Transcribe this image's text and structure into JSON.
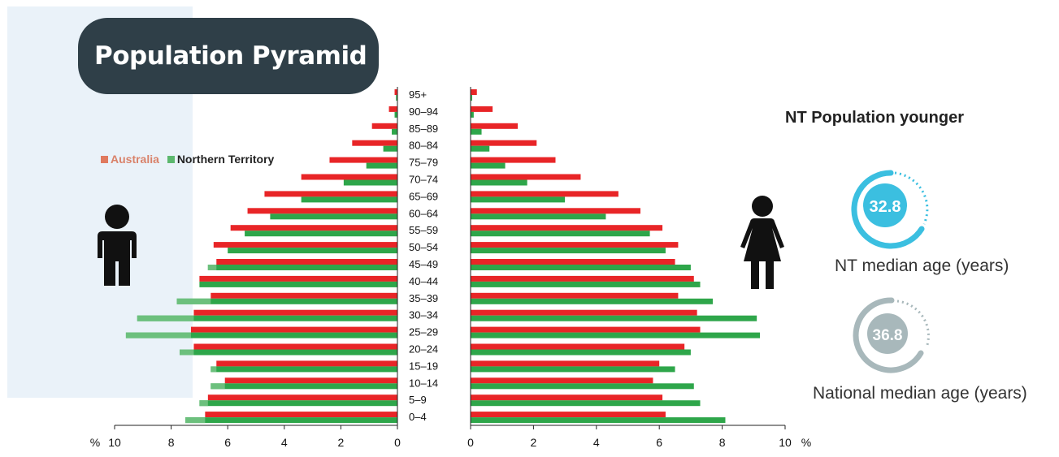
{
  "title": "Population Pyramid",
  "legend": {
    "australia": "Australia",
    "nt": "Northern Territory"
  },
  "side": {
    "heading": "NT Population younger",
    "nt_value": "32.8",
    "nt_label": "NT median age (years)",
    "national_value": "36.8",
    "national_label": "National median age (years)"
  },
  "colors": {
    "australia": "#e82527",
    "australia_legend": "#e07a5f",
    "nt": "#2ea64a",
    "nt_light": "#6cc07d",
    "nt_circle": "#3bbfe0",
    "national_circle": "#a8b8bb"
  },
  "icons": {
    "male": "male-figure-icon",
    "female": "female-figure-icon"
  },
  "chart_data": {
    "type": "bar",
    "title": "Population Pyramid",
    "axis_unit": "%",
    "xlim": [
      0,
      10
    ],
    "left_ticks": [
      "10",
      "8",
      "6",
      "4",
      "2",
      "0"
    ],
    "right_ticks": [
      "0",
      "2",
      "4",
      "6",
      "8",
      "10"
    ],
    "categories": [
      "95+",
      "90–94",
      "85–89",
      "80–84",
      "75–79",
      "70–74",
      "65–69",
      "60–64",
      "55–59",
      "50–54",
      "45–49",
      "40–44",
      "35–39",
      "30–34",
      "25–29",
      "20–24",
      "15–19",
      "10–14",
      "5–9",
      "0–4"
    ],
    "series": [
      {
        "name": "Australia",
        "side": "male",
        "values": [
          0.1,
          0.3,
          0.9,
          1.6,
          2.4,
          3.4,
          4.7,
          5.3,
          5.9,
          6.5,
          6.4,
          7.0,
          6.6,
          7.2,
          7.3,
          7.2,
          6.4,
          6.1,
          6.7,
          6.8
        ]
      },
      {
        "name": "Northern Territory",
        "side": "male",
        "values": [
          0.05,
          0.1,
          0.2,
          0.5,
          1.1,
          1.9,
          3.4,
          4.5,
          5.4,
          6.0,
          6.7,
          7.0,
          7.8,
          9.2,
          9.6,
          7.7,
          6.6,
          6.6,
          7.0,
          7.5
        ]
      },
      {
        "name": "Australia",
        "side": "female",
        "values": [
          0.2,
          0.7,
          1.5,
          2.1,
          2.7,
          3.5,
          4.7,
          5.4,
          6.1,
          6.6,
          6.5,
          7.1,
          6.6,
          7.2,
          7.3,
          6.8,
          6.0,
          5.8,
          6.1,
          6.2
        ]
      },
      {
        "name": "Northern Territory",
        "side": "female",
        "values": [
          0.05,
          0.1,
          0.35,
          0.6,
          1.1,
          1.8,
          3.0,
          4.3,
          5.7,
          6.2,
          7.0,
          7.3,
          7.7,
          9.1,
          9.2,
          7.0,
          6.5,
          7.1,
          7.3,
          8.1
        ]
      }
    ]
  }
}
